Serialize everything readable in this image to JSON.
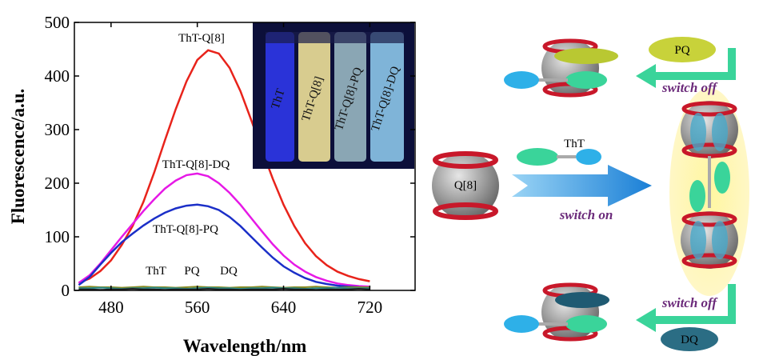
{
  "chart_data": {
    "type": "line",
    "xlabel": "Wavelength/nm",
    "ylabel": "Fluorescence/a.u.",
    "x": [
      450,
      460,
      470,
      480,
      490,
      500,
      510,
      520,
      530,
      540,
      550,
      560,
      570,
      580,
      590,
      600,
      610,
      620,
      630,
      640,
      650,
      660,
      670,
      680,
      690,
      700,
      710,
      720
    ],
    "series": [
      {
        "name": "ThT-Q[8]",
        "color": "#e8231b",
        "values": [
          14,
          22,
          36,
          56,
          85,
          120,
          165,
          220,
          280,
          338,
          390,
          430,
          448,
          442,
          415,
          372,
          318,
          262,
          208,
          160,
          120,
          88,
          64,
          47,
          35,
          27,
          21,
          17
        ]
      },
      {
        "name": "ThT-Q[8]-DQ",
        "color": "#e619e6",
        "values": [
          14,
          28,
          50,
          75,
          100,
          124,
          148,
          170,
          190,
          205,
          215,
          218,
          213,
          200,
          182,
          160,
          135,
          110,
          86,
          65,
          48,
          35,
          25,
          18,
          13,
          10,
          8,
          7
        ]
      },
      {
        "name": "ThT-Q[8]-PQ",
        "color": "#1b2fc8",
        "values": [
          10,
          25,
          48,
          70,
          90,
          106,
          121,
          134,
          145,
          153,
          158,
          160,
          157,
          150,
          137,
          120,
          100,
          80,
          61,
          45,
          33,
          23,
          16,
          12,
          9,
          7,
          6,
          5
        ]
      },
      {
        "name": "ThT",
        "color": "#8a8a20",
        "values": [
          6,
          7,
          6,
          6,
          5,
          6,
          7,
          6,
          6,
          5,
          6,
          7,
          6,
          6,
          5,
          6,
          6,
          7,
          6,
          5,
          6,
          6,
          7,
          6,
          5,
          6,
          6,
          6
        ]
      },
      {
        "name": "PQ",
        "color": "#2a8a8a",
        "values": [
          4,
          4,
          5,
          4,
          3,
          4,
          4,
          5,
          4,
          4,
          3,
          4,
          5,
          4,
          4,
          3,
          4,
          4,
          5,
          4,
          4,
          3,
          4,
          4,
          5,
          4,
          4,
          4
        ]
      },
      {
        "name": "DQ",
        "color": "#222222",
        "values": [
          2,
          2,
          1,
          2,
          2,
          3,
          2,
          2,
          1,
          2,
          2,
          2,
          3,
          2,
          2,
          1,
          2,
          2,
          2,
          3,
          2,
          2,
          1,
          2,
          2,
          2,
          3,
          2
        ]
      }
    ],
    "xlim": [
      446,
      762
    ],
    "ylim": [
      0,
      500
    ],
    "xticks": [
      480,
      560,
      640,
      720
    ],
    "yticks": [
      0,
      100,
      200,
      300,
      400,
      500
    ]
  },
  "inset_labels": [
    "ThT",
    "ThT-Q[8]",
    "ThT-Q[8]-PQ",
    "ThT-Q[8]-DQ"
  ],
  "scheme": {
    "host": "Q[8]",
    "guest": "ThT",
    "switch_on": "switch on",
    "quencher_top": "PQ",
    "switch_off_top": "switch off",
    "switch_off_bottom": "switch off",
    "quencher_bottom": "DQ"
  }
}
